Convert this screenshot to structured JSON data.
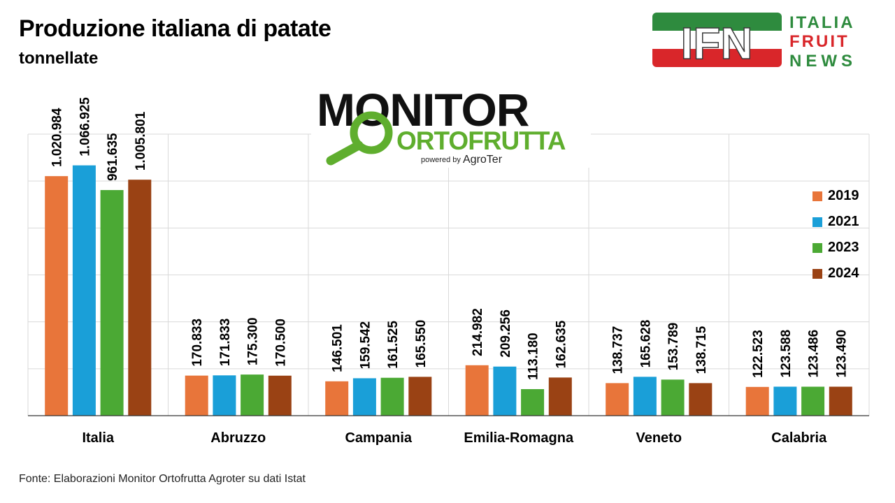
{
  "header": {
    "title": "Produzione italiana di patate",
    "subtitle": "tonnellate"
  },
  "source": "Fonte: Elaborazioni Monitor Ortofrutta Agroter su dati Istat",
  "logos": {
    "ifn": {
      "mark": "IFN",
      "line1": "ITALIA",
      "line2": "FRUIT",
      "line3": "NEWS"
    },
    "monitor": {
      "line1": "MONITOR",
      "line2": "ORTOFRUTTA",
      "powered": "powered by",
      "brand": "AgroTer"
    }
  },
  "colors": {
    "2019": "#E8753A",
    "2021": "#1A9FD8",
    "2023": "#4BA934",
    "2024": "#9A4214",
    "ifn_green": "#2E8B3E",
    "ifn_red": "#D9262A",
    "monitor_green": "#5FAE2E"
  },
  "chart_data": {
    "type": "bar",
    "title": "Produzione italiana di patate",
    "ylabel": "tonnellate",
    "ylim": [
      0,
      1200000
    ],
    "grid": true,
    "legend_position": "right",
    "categories": [
      "Italia",
      "Abruzzo",
      "Campania",
      "Emilia-Romagna",
      "Veneto",
      "Calabria"
    ],
    "series": [
      {
        "name": "2019",
        "values": [
          1020984,
          170833,
          146501,
          214982,
          138737,
          122523
        ],
        "labels": [
          "1.020.984",
          "170.833",
          "146.501",
          "214.982",
          "138.737",
          "122.523"
        ]
      },
      {
        "name": "2021",
        "values": [
          1066925,
          171833,
          159542,
          209256,
          165628,
          123588
        ],
        "labels": [
          "1.066.925",
          "171.833",
          "159.542",
          "209.256",
          "165.628",
          "123.588"
        ]
      },
      {
        "name": "2023",
        "values": [
          961635,
          175300,
          161525,
          113180,
          153789,
          123486
        ],
        "labels": [
          "961.635",
          "175.300",
          "161.525",
          "113.180",
          "153.789",
          "123.486"
        ]
      },
      {
        "name": "2024",
        "values": [
          1005801,
          170500,
          165550,
          162635,
          138715,
          123490
        ],
        "labels": [
          "1.005.801",
          "170.500",
          "165.550",
          "162.635",
          "138.715",
          "123.490"
        ]
      }
    ]
  }
}
